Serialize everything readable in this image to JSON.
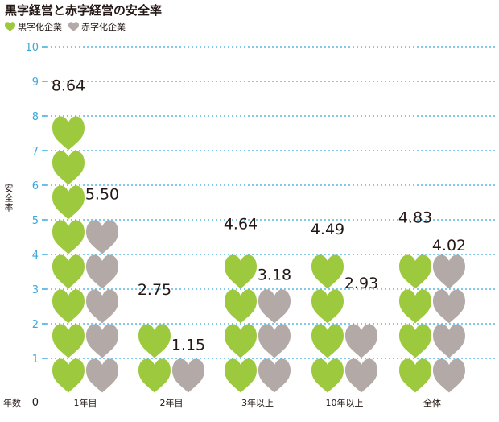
{
  "chart_data": {
    "type": "bar",
    "title": "黒字経営と赤字経営の安全率",
    "ylabel": "安全率",
    "xlabel": "年数",
    "ylim": [
      0,
      10
    ],
    "yticks": [
      "0",
      "1",
      "2",
      "3",
      "4",
      "5",
      "6",
      "7",
      "8",
      "9",
      "10"
    ],
    "categories": [
      "1年目",
      "2年目",
      "3年以上",
      "10年以上",
      "全体"
    ],
    "series": [
      {
        "name": "黒字化企業",
        "color": "#9dc93e",
        "values": [
          8.64,
          2.75,
          4.64,
          4.49,
          4.83
        ],
        "labels": [
          "8.64",
          "2.75",
          "4.64",
          "4.49",
          "4.83"
        ]
      },
      {
        "name": "赤字化企業",
        "color": "#b3a9a7",
        "values": [
          5.5,
          1.15,
          3.18,
          2.93,
          4.02
        ],
        "labels": [
          "5.50",
          "1.15",
          "3.18",
          "2.93",
          "4.02"
        ]
      }
    ],
    "grid": true,
    "gridColor": "#3ba8dd",
    "tickColor": "#3ba8dd",
    "legend": "top-left",
    "markIcon": "heart-icon"
  }
}
